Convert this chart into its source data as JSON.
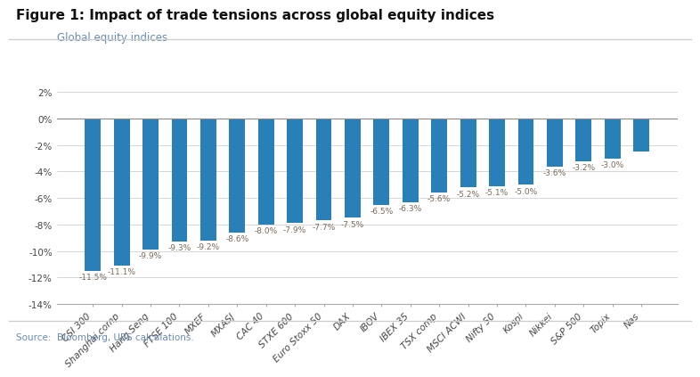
{
  "title": "Figure 1: Impact of trade tensions across global equity indices",
  "subtitle": "Global equity indices",
  "source": "Source:  Bloomberg, UBS calculations.",
  "categories": [
    "CSI 300",
    "Shanghai comp",
    "Hang Seng",
    "FTSE 100",
    "MXEF",
    "MXASJ",
    "CAC 40",
    "STXE 600",
    "Euro Stoxx 50",
    "DAX",
    "IBOV",
    "IBEX 35",
    "TSX comp",
    "MSCI ACWI",
    "Nifty 50",
    "Kospi",
    "Nikkei",
    "S&P 500",
    "Topix",
    "Nas"
  ],
  "values": [
    -11.5,
    -11.1,
    -9.9,
    -9.3,
    -9.2,
    -8.6,
    -8.0,
    -7.9,
    -7.7,
    -7.5,
    -6.5,
    -6.3,
    -5.6,
    -5.2,
    -5.1,
    -5.0,
    -3.6,
    -3.2,
    -3.0,
    -2.5
  ],
  "labels": [
    "-11.5%",
    "-11.1%",
    "-9.9%",
    "-9.3%",
    "-9.2%",
    "-8.6%",
    "-8.0%",
    "-7.9%",
    "-7.7%",
    "-7.5%",
    "-6.5%",
    "-6.3%",
    "-5.6%",
    "-5.2%",
    "-5.1%",
    "-5.0%",
    "-3.6%",
    "-3.2%",
    "-3.0%",
    ""
  ],
  "bar_color": "#2980b9",
  "ylim": [
    -14,
    2
  ],
  "yticks": [
    2,
    0,
    -2,
    -4,
    -6,
    -8,
    -10,
    -12,
    -14
  ],
  "ytick_labels": [
    "2%",
    "0%",
    "-2%",
    "-4%",
    "-6%",
    "-8%",
    "-10%",
    "-12%",
    "-14%"
  ],
  "title_fontsize": 11,
  "subtitle_fontsize": 8.5,
  "label_fontsize": 6.5,
  "tick_fontsize": 7.5,
  "source_fontsize": 7.5,
  "background_color": "#ffffff",
  "grid_color": "#d0d0d0",
  "label_color": "#7a6a5a",
  "subtitle_color": "#6a8ab0",
  "source_color": "#6a8ab0"
}
